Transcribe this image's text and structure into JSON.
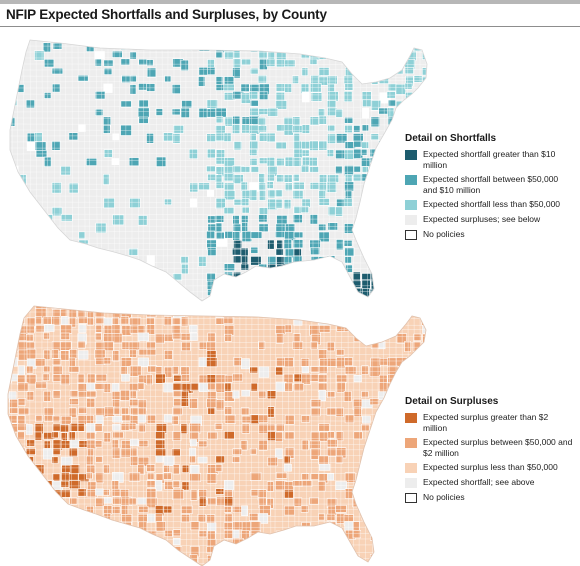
{
  "title": "NFIP Expected Shortfalls and Surpluses, by County",
  "colors": {
    "land_gray": "#ededed",
    "county_line": "#ffffff",
    "shortfall_high": "#1d5c6e",
    "shortfall_mid": "#4ea6b4",
    "shortfall_low": "#8ed0d6",
    "surplus_high": "#cf6a2a",
    "surplus_mid": "#eda679",
    "surplus_low": "#f8d2b6",
    "no_policies": "#ffffff"
  },
  "shortfalls": {
    "legend_title": "Detail on Shortfalls",
    "items": [
      {
        "label": "Expected shortfall greater than $10 million",
        "color": "#1d5c6e",
        "outline": false
      },
      {
        "label": "Expected shortfall between $50,000 and $10 million",
        "color": "#4ea6b4",
        "outline": false
      },
      {
        "label": "Expected shortfall less than $50,000",
        "color": "#8ed0d6",
        "outline": false
      },
      {
        "label": "Expected surpluses; see below",
        "color": "#ededed",
        "outline": false
      },
      {
        "label": "No policies",
        "color": "#ffffff",
        "outline": true
      }
    ]
  },
  "surpluses": {
    "legend_title": "Detail on Surpluses",
    "items": [
      {
        "label": "Expected surplus greater than $2 million",
        "color": "#cf6a2a",
        "outline": false
      },
      {
        "label": "Expected surplus between $50,000 and $2 million",
        "color": "#eda679",
        "outline": false
      },
      {
        "label": "Expected surplus less than $50,000",
        "color": "#f8d2b6",
        "outline": false
      },
      {
        "label": "Expected shortfall; see above",
        "color": "#ededed",
        "outline": false
      },
      {
        "label": "No policies",
        "color": "#ffffff",
        "outline": true
      }
    ]
  }
}
